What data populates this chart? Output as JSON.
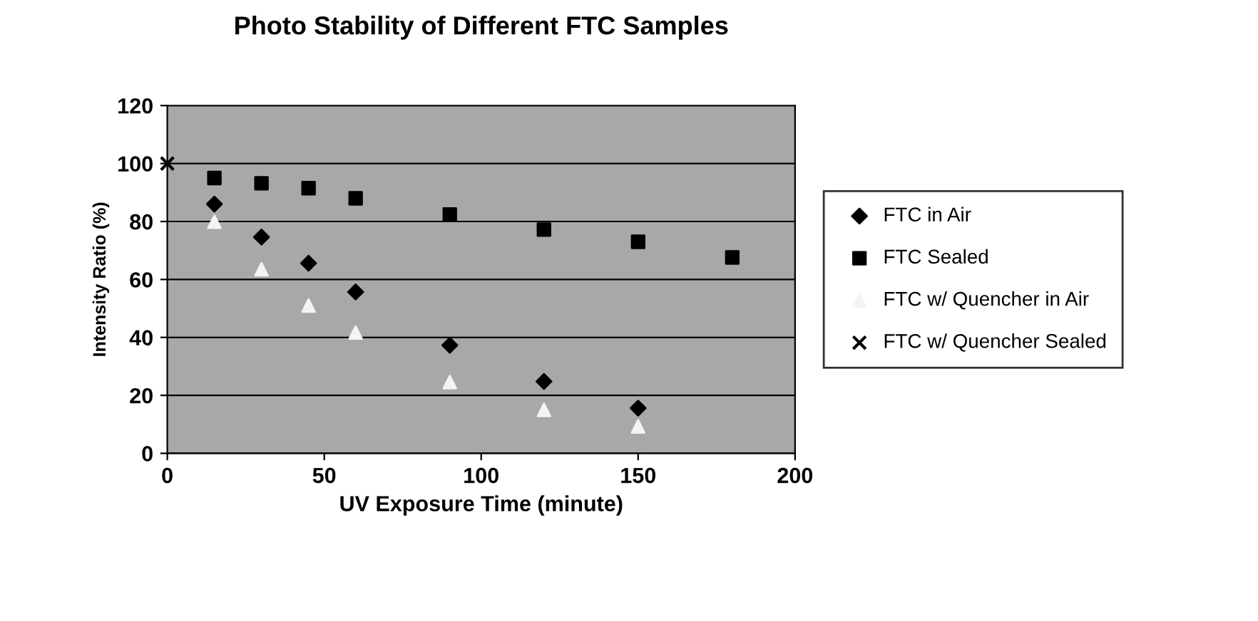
{
  "chart_data": {
    "type": "scatter",
    "title": "Photo Stability of Different FTC Samples",
    "xlabel": "UV Exposure Time (minute)",
    "ylabel": "Intensity Ratio (%)",
    "xlim": [
      0,
      200
    ],
    "xticks": [
      0,
      50,
      100,
      150,
      200
    ],
    "ylim": [
      0,
      120
    ],
    "yticks": [
      0,
      20,
      40,
      60,
      80,
      100,
      120
    ],
    "grid": "y",
    "legend": "right",
    "series": [
      {
        "name": "FTC in Air",
        "color": "#000000",
        "marker": "diamond",
        "x": [
          15,
          30,
          45,
          60,
          90,
          120,
          150
        ],
        "values": [
          86,
          74.6,
          65.6,
          55.7,
          37.3,
          24.8,
          15.6
        ]
      },
      {
        "name": "FTC Sealed",
        "color": "#000000",
        "marker": "square",
        "x": [
          15,
          30,
          45,
          60,
          90,
          120,
          150,
          180
        ],
        "values": [
          95,
          93.2,
          91.5,
          88,
          82.4,
          77.2,
          73,
          67.6
        ]
      },
      {
        "name": "FTC w/ Quencher in Air",
        "color": "#f4f4f4",
        "marker": "triangle",
        "x": [
          15,
          30,
          45,
          60,
          90,
          120,
          150
        ],
        "values": [
          79.9,
          63.5,
          51,
          41.7,
          24.6,
          15,
          9.3
        ]
      },
      {
        "name": "FTC w/ Quencher Sealed",
        "color": "#000000",
        "marker": "cross",
        "x": [
          0
        ],
        "values": [
          100
        ]
      }
    ]
  }
}
